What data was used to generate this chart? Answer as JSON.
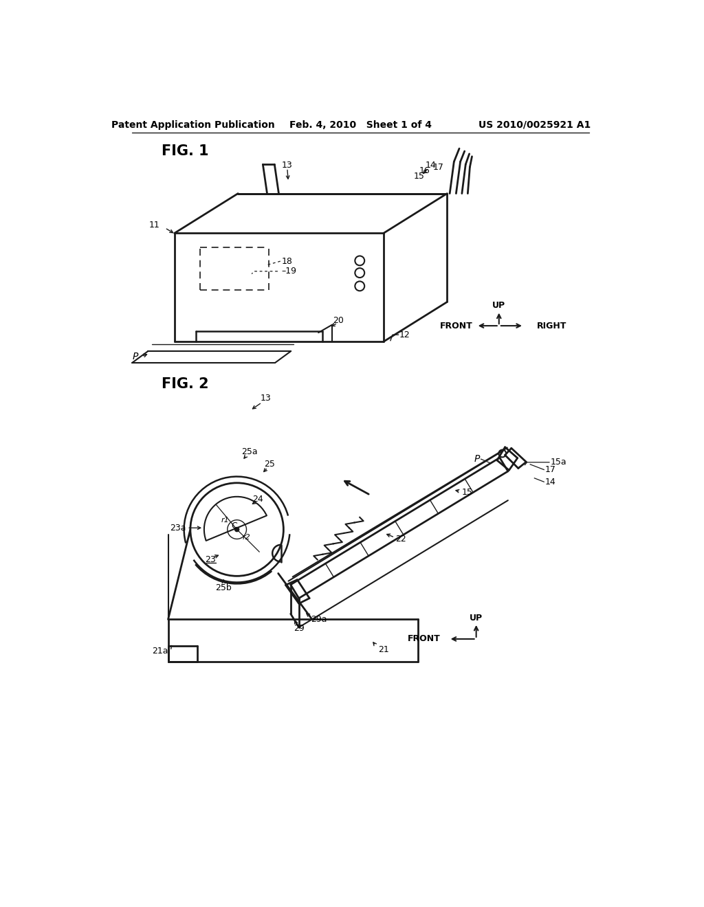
{
  "bg_color": "#ffffff",
  "header_left": "Patent Application Publication",
  "header_mid": "Feb. 4, 2010   Sheet 1 of 4",
  "header_right": "US 2010/0025921 A1",
  "fig1_label": "FIG. 1",
  "fig2_label": "FIG. 2",
  "line_color": "#1a1a1a",
  "text_color": "#000000"
}
